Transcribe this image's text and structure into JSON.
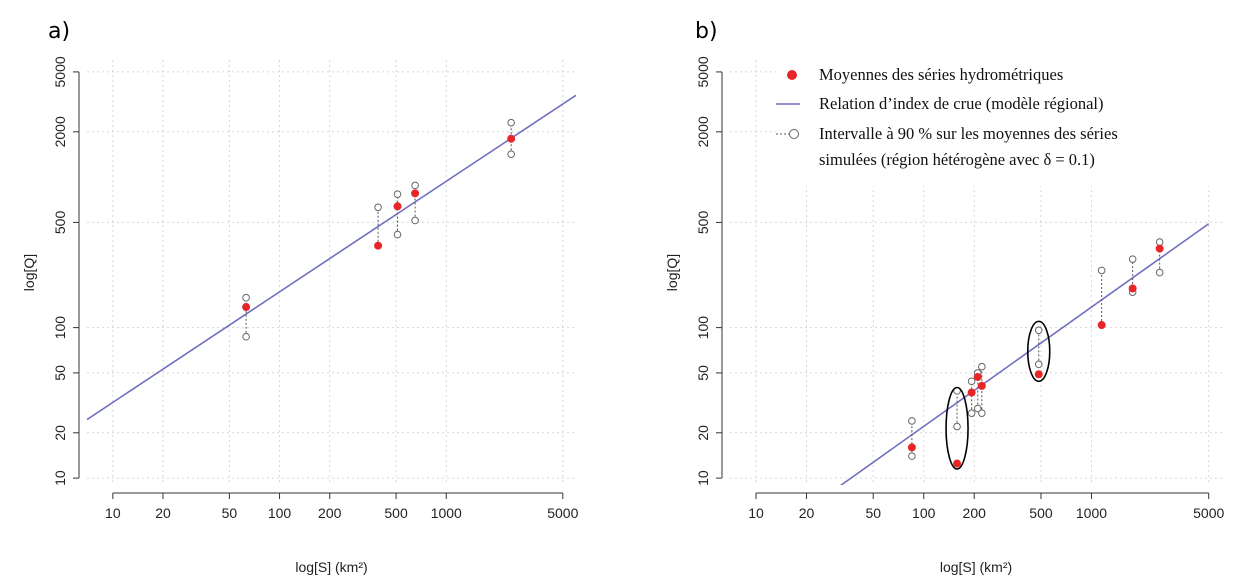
{
  "chart_data": [
    {
      "type": "scatter",
      "panel_label": "a)",
      "xlabel": "log[S] (km²)",
      "ylabel": "log[Q]",
      "xscale": "log",
      "yscale": "log",
      "xlim": [
        7,
        6000
      ],
      "ylim": [
        9,
        6000
      ],
      "xticks": [
        10,
        20,
        50,
        100,
        200,
        500,
        1000,
        5000
      ],
      "yticks": [
        10,
        20,
        50,
        100,
        500,
        2000,
        5000
      ],
      "grid": true,
      "colors": {
        "observed": "#e8262a",
        "regression": "#7070c0",
        "interval": "#555555"
      },
      "regression_line": {
        "x": [
          7,
          6000
        ],
        "y": [
          24.5,
          3500
        ]
      },
      "series": [
        {
          "label_key": "observed",
          "points": [
            {
              "x": 63,
              "y": 137
            },
            {
              "x": 390,
              "y": 350
            },
            {
              "x": 510,
              "y": 640
            },
            {
              "x": 650,
              "y": 780
            },
            {
              "x": 2450,
              "y": 1800
            }
          ]
        }
      ],
      "intervals": [
        {
          "x": 63,
          "low": 87,
          "high": 158
        },
        {
          "x": 390,
          "low": 350,
          "high": 630
        },
        {
          "x": 510,
          "low": 415,
          "high": 770
        },
        {
          "x": 650,
          "low": 515,
          "high": 880
        },
        {
          "x": 2450,
          "low": 1420,
          "high": 2300
        }
      ]
    },
    {
      "type": "scatter",
      "panel_label": "b)",
      "xlabel": "log[S] (km²)",
      "ylabel": "log[Q]",
      "xscale": "log",
      "yscale": "log",
      "xlim": [
        7,
        6000
      ],
      "ylim": [
        9,
        6000
      ],
      "xticks": [
        10,
        20,
        50,
        100,
        200,
        500,
        1000,
        5000
      ],
      "yticks": [
        10,
        20,
        50,
        100,
        500,
        2000,
        5000
      ],
      "grid": true,
      "legend_position": "top-right",
      "legend": [
        {
          "key": "observed",
          "text": "Moyennes des séries hydrométriques"
        },
        {
          "key": "regression",
          "text": "Relation d’index de crue (modèle régional)"
        },
        {
          "key": "interval",
          "text": "Intervalle à 90 % sur les moyennes des séries",
          "text2": "simulées (région hétérogène avec δ = 0.1)"
        }
      ],
      "colors": {
        "observed": "#e8262a",
        "regression": "#7070c0",
        "interval": "#555555",
        "ellipse": "#000000"
      },
      "regression_line": {
        "x": [
          30,
          5000
        ],
        "y": [
          8.5,
          490
        ]
      },
      "series": [
        {
          "label_key": "observed",
          "points": [
            {
              "x": 85,
              "y": 16
            },
            {
              "x": 158,
              "y": 12.5
            },
            {
              "x": 193,
              "y": 37
            },
            {
              "x": 210,
              "y": 47
            },
            {
              "x": 222,
              "y": 41
            },
            {
              "x": 485,
              "y": 49
            },
            {
              "x": 1150,
              "y": 104
            },
            {
              "x": 1760,
              "y": 182
            },
            {
              "x": 2550,
              "y": 335
            }
          ]
        }
      ],
      "intervals": [
        {
          "x": 85,
          "low": 14,
          "high": 24
        },
        {
          "x": 158,
          "low": 22,
          "high": 38
        },
        {
          "x": 193,
          "low": 27,
          "high": 44
        },
        {
          "x": 210,
          "low": 29,
          "high": 50
        },
        {
          "x": 222,
          "low": 27,
          "high": 55
        },
        {
          "x": 485,
          "low": 57,
          "high": 96
        },
        {
          "x": 1150,
          "low": 104,
          "high": 240
        },
        {
          "x": 1760,
          "low": 172,
          "high": 285
        },
        {
          "x": 2550,
          "low": 232,
          "high": 370
        }
      ],
      "highlight_ellipses": [
        {
          "x": 158,
          "y_low": 11.5,
          "y_high": 40
        },
        {
          "x": 485,
          "y_low": 44,
          "y_high": 110
        }
      ]
    }
  ]
}
